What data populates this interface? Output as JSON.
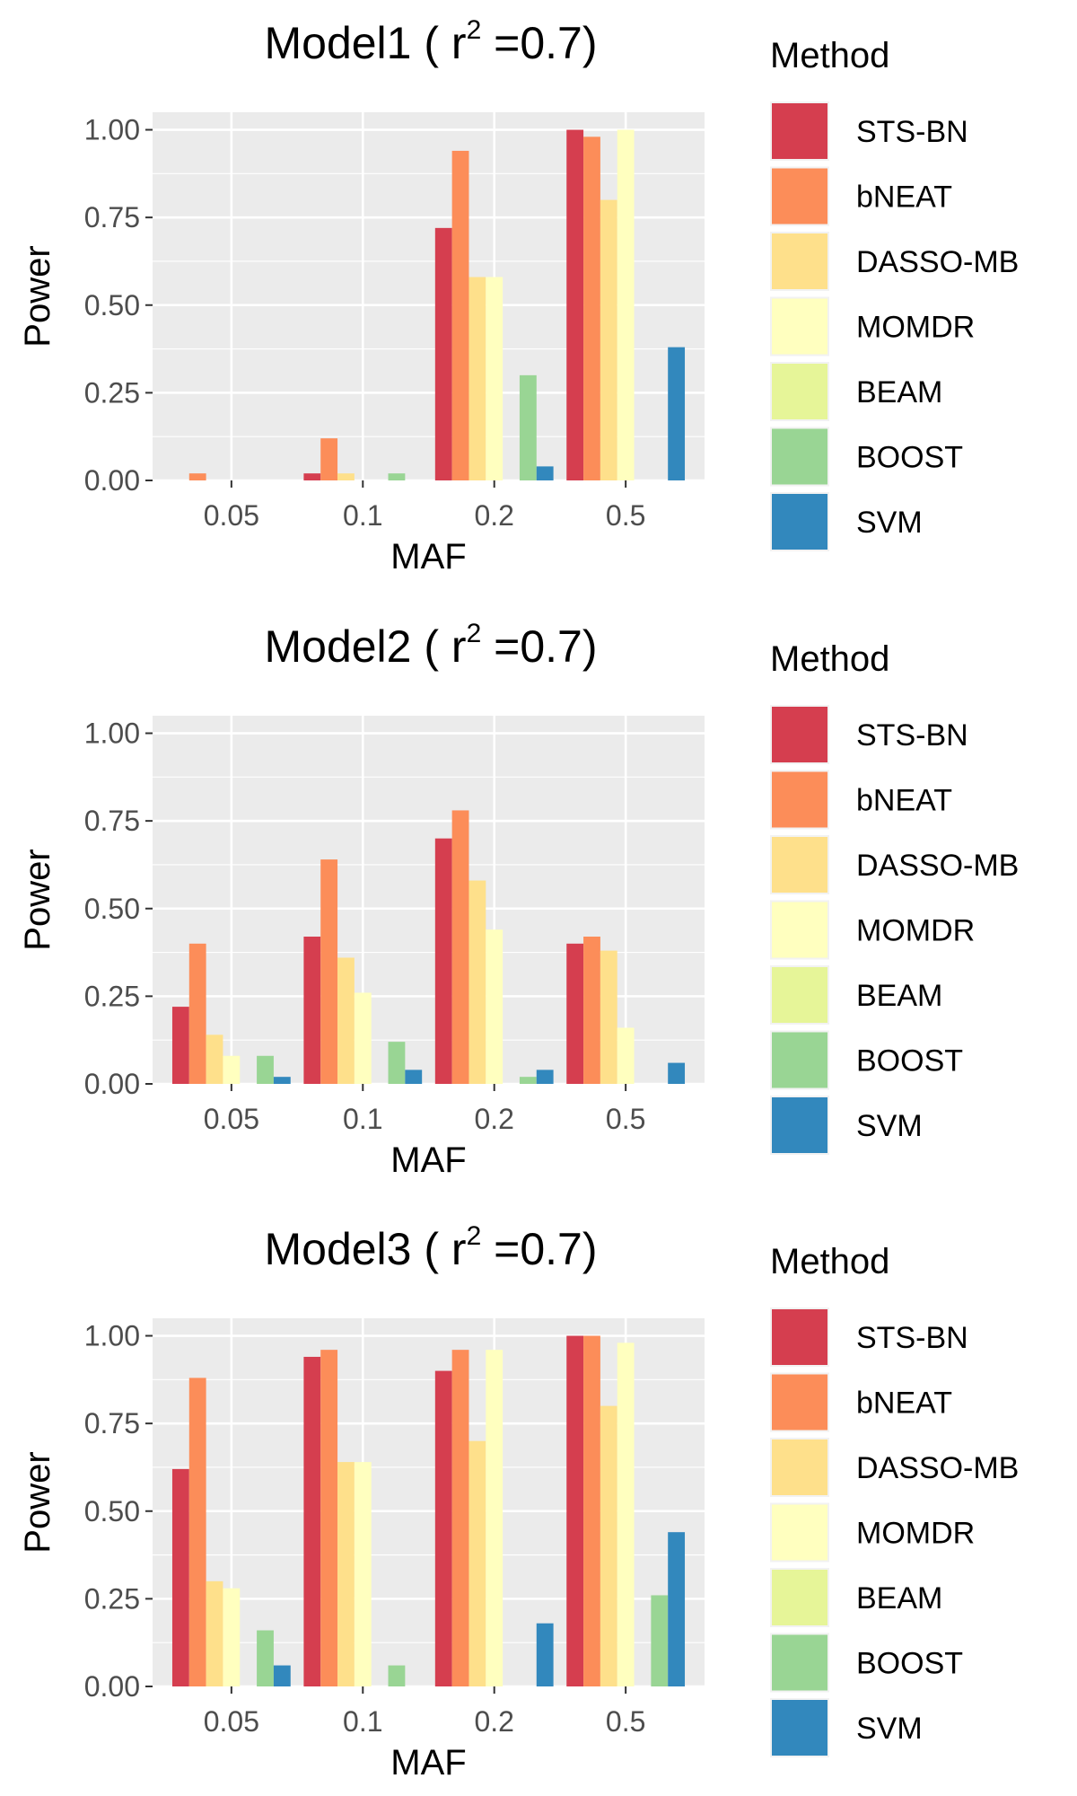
{
  "chart_data": [
    {
      "type": "bar",
      "title": {
        "prefix": "Model1 ( r",
        "sup": "2",
        "suffix": " =0.7)"
      },
      "xlabel": "MAF",
      "ylabel": "Power",
      "categories": [
        "0.05",
        "0.1",
        "0.2",
        "0.5"
      ],
      "ylim": [
        0,
        1.05
      ],
      "yticks": [
        "0.00",
        "0.25",
        "0.50",
        "0.75",
        "1.00"
      ],
      "series": [
        {
          "name": "STS-BN",
          "values": [
            0.0,
            0.02,
            0.72,
            1.0
          ]
        },
        {
          "name": "bNEAT",
          "values": [
            0.02,
            0.12,
            0.94,
            0.98
          ]
        },
        {
          "name": "DASSO-MB",
          "values": [
            0.0,
            0.02,
            0.58,
            0.8
          ]
        },
        {
          "name": "MOMDR",
          "values": [
            0.0,
            0.0,
            0.58,
            1.0
          ]
        },
        {
          "name": "BEAM",
          "values": [
            0.0,
            0.0,
            0.0,
            0.0
          ]
        },
        {
          "name": "BOOST",
          "values": [
            0.0,
            0.02,
            0.3,
            0.0
          ]
        },
        {
          "name": "SVM",
          "values": [
            0.0,
            0.0,
            0.04,
            0.38
          ]
        }
      ],
      "legend": {
        "title": "Method",
        "position": "right"
      },
      "grid": true
    },
    {
      "type": "bar",
      "title": {
        "prefix": "Model2 ( r",
        "sup": "2",
        "suffix": " =0.7)"
      },
      "xlabel": "MAF",
      "ylabel": "Power",
      "categories": [
        "0.05",
        "0.1",
        "0.2",
        "0.5"
      ],
      "ylim": [
        0,
        1.05
      ],
      "yticks": [
        "0.00",
        "0.25",
        "0.50",
        "0.75",
        "1.00"
      ],
      "series": [
        {
          "name": "STS-BN",
          "values": [
            0.22,
            0.42,
            0.7,
            0.4
          ]
        },
        {
          "name": "bNEAT",
          "values": [
            0.4,
            0.64,
            0.78,
            0.42
          ]
        },
        {
          "name": "DASSO-MB",
          "values": [
            0.14,
            0.36,
            0.58,
            0.38
          ]
        },
        {
          "name": "MOMDR",
          "values": [
            0.08,
            0.26,
            0.44,
            0.16
          ]
        },
        {
          "name": "BEAM",
          "values": [
            0.0,
            0.0,
            0.0,
            0.0
          ]
        },
        {
          "name": "BOOST",
          "values": [
            0.08,
            0.12,
            0.02,
            0.0
          ]
        },
        {
          "name": "SVM",
          "values": [
            0.02,
            0.04,
            0.04,
            0.06
          ]
        }
      ],
      "legend": {
        "title": "Method",
        "position": "right"
      },
      "grid": true
    },
    {
      "type": "bar",
      "title": {
        "prefix": "Model3 ( r",
        "sup": "2",
        "suffix": " =0.7)"
      },
      "xlabel": "MAF",
      "ylabel": "Power",
      "categories": [
        "0.05",
        "0.1",
        "0.2",
        "0.5"
      ],
      "ylim": [
        0,
        1.05
      ],
      "yticks": [
        "0.00",
        "0.25",
        "0.50",
        "0.75",
        "1.00"
      ],
      "series": [
        {
          "name": "STS-BN",
          "values": [
            0.62,
            0.94,
            0.9,
            1.0
          ]
        },
        {
          "name": "bNEAT",
          "values": [
            0.88,
            0.96,
            0.96,
            1.0
          ]
        },
        {
          "name": "DASSO-MB",
          "values": [
            0.3,
            0.64,
            0.7,
            0.8
          ]
        },
        {
          "name": "MOMDR",
          "values": [
            0.28,
            0.64,
            0.96,
            0.98
          ]
        },
        {
          "name": "BEAM",
          "values": [
            0.0,
            0.0,
            0.0,
            0.0
          ]
        },
        {
          "name": "BOOST",
          "values": [
            0.16,
            0.06,
            0.0,
            0.26
          ]
        },
        {
          "name": "SVM",
          "values": [
            0.06,
            0.0,
            0.18,
            0.44
          ]
        }
      ],
      "legend": {
        "title": "Method",
        "position": "right"
      },
      "grid": true
    }
  ],
  "colors": {
    "STS-BN": "#d53e4f",
    "bNEAT": "#fc8d59",
    "DASSO-MB": "#fee08b",
    "MOMDR": "#ffffbf",
    "BEAM": "#e6f598",
    "BOOST": "#99d594",
    "SVM": "#3288bd",
    "panel": "#ebebeb",
    "grid": "#ffffff"
  }
}
